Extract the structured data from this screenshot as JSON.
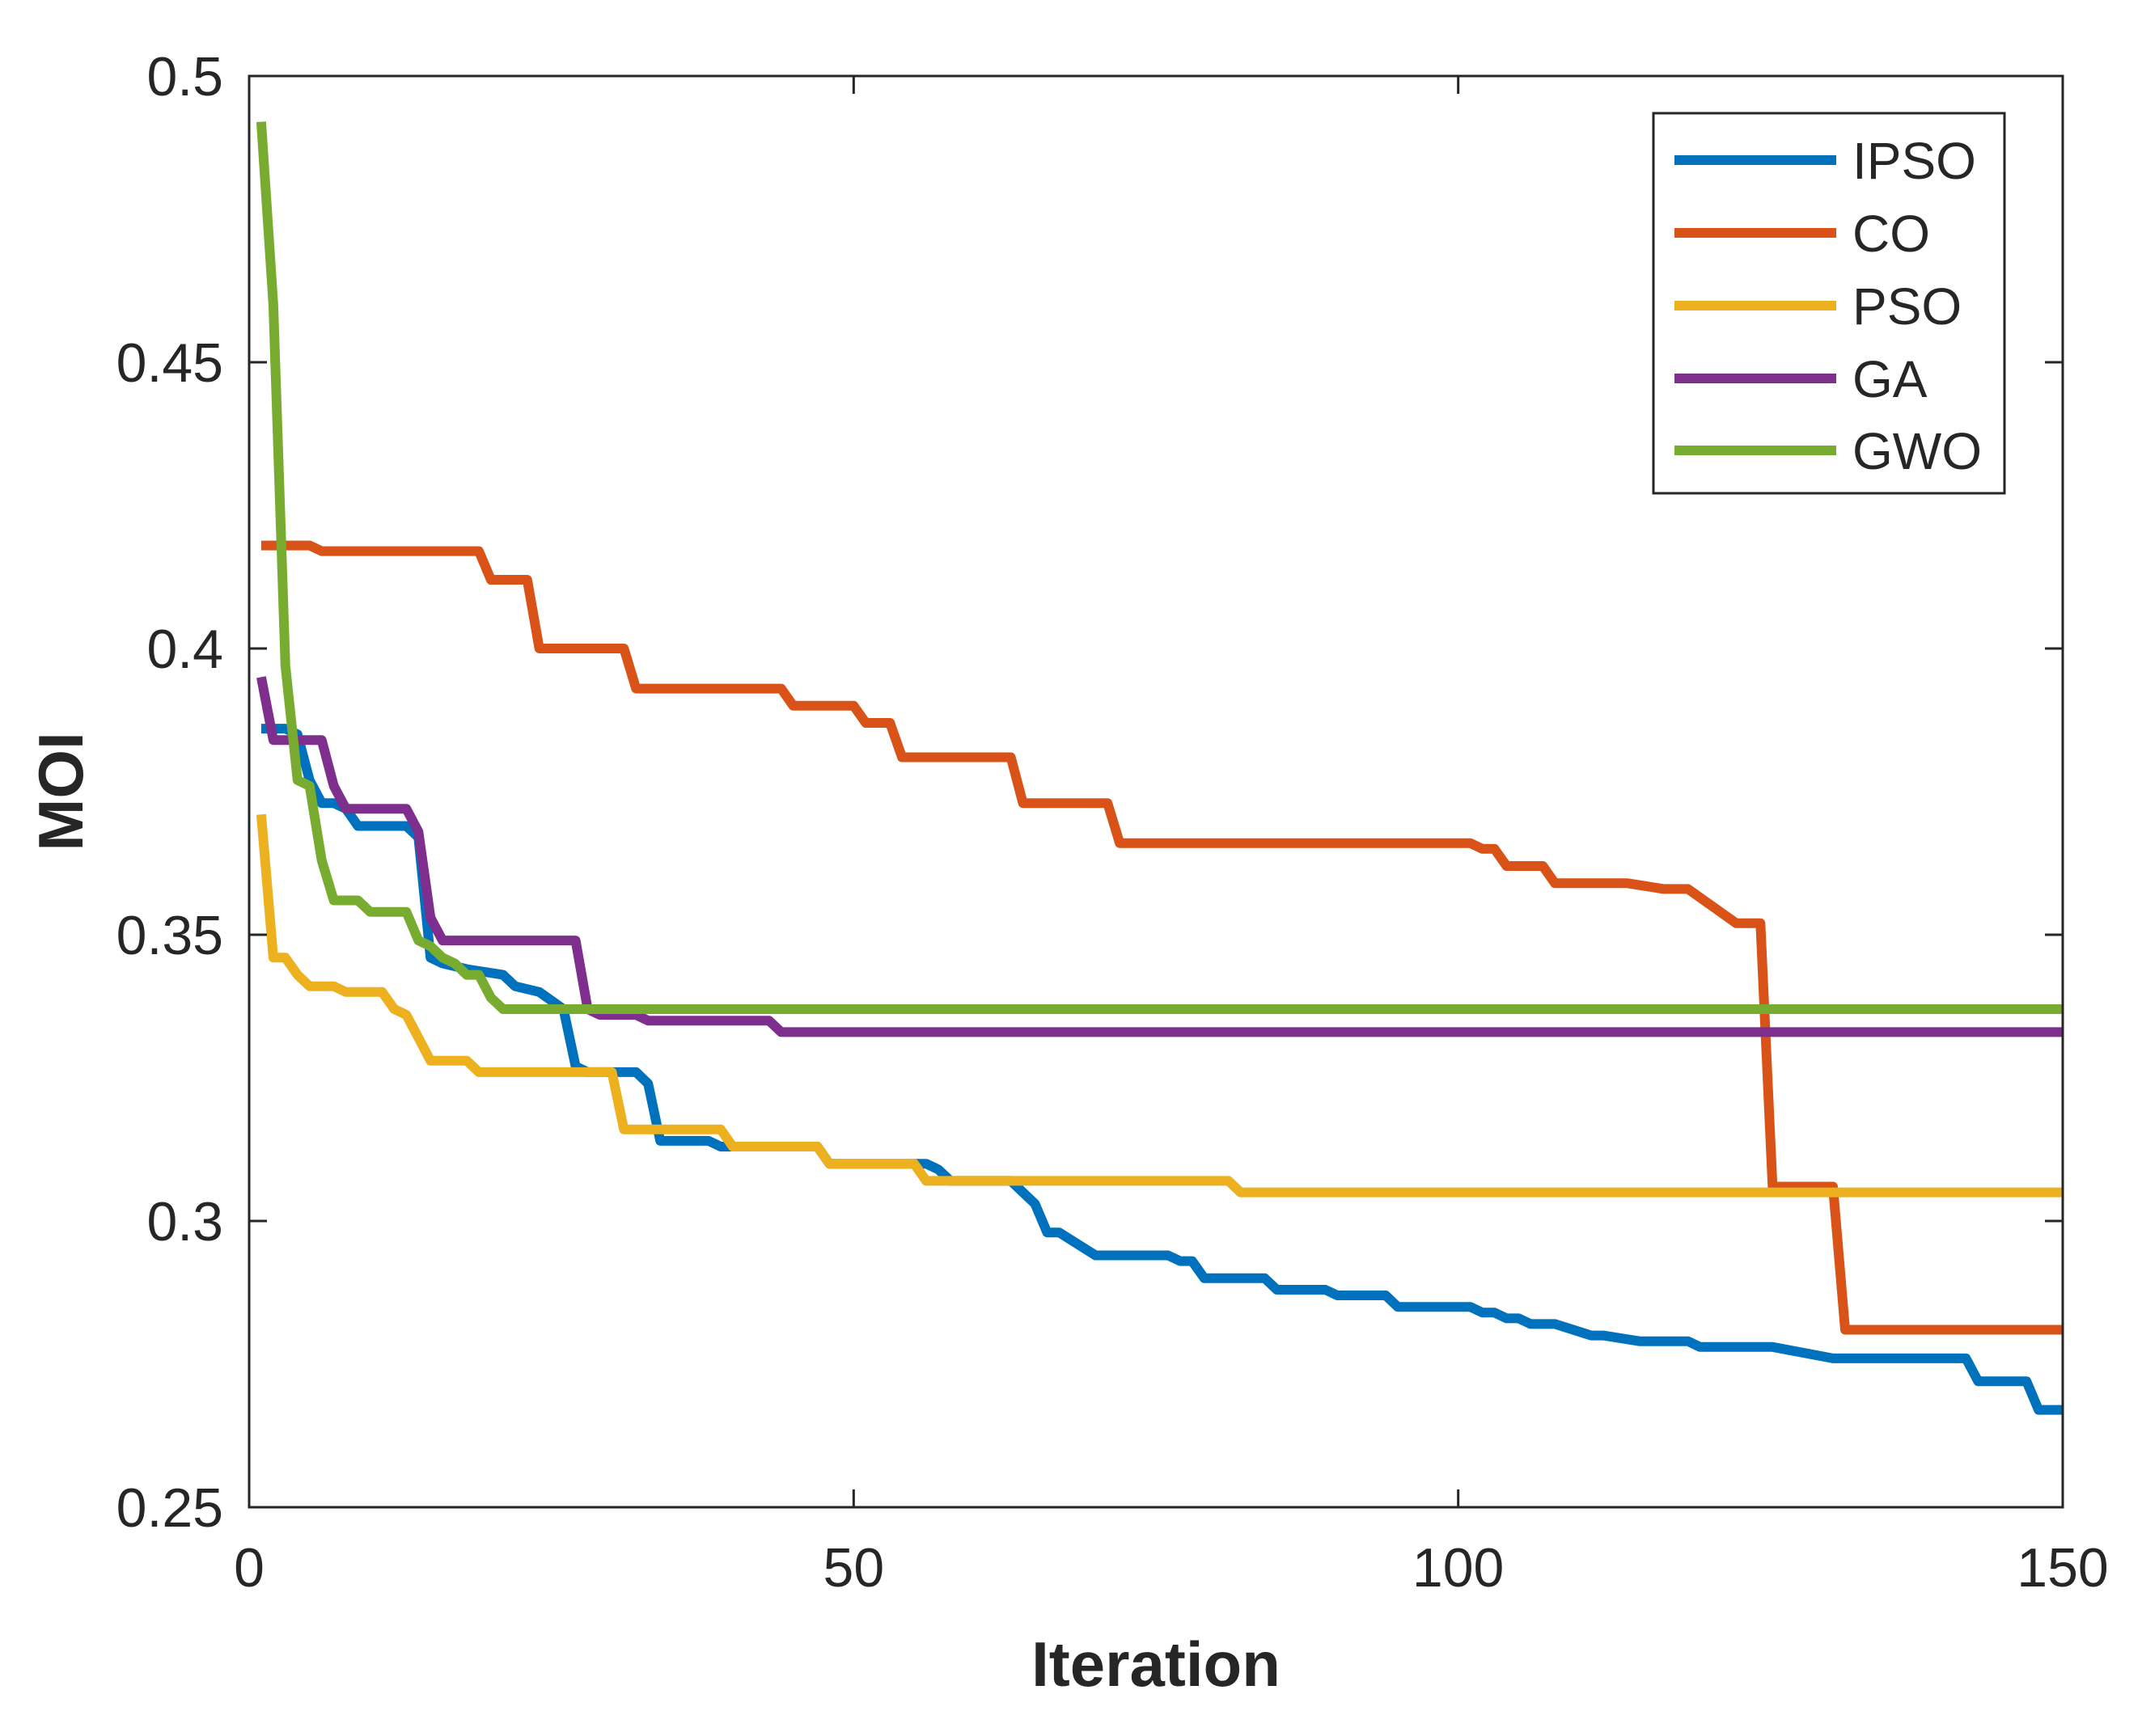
{
  "chart_data": {
    "type": "line",
    "title": "",
    "xlabel": "Iteration",
    "ylabel": "MOI",
    "xlim": [
      0,
      150
    ],
    "ylim": [
      0.25,
      0.5
    ],
    "xticks": [
      0,
      50,
      100,
      150
    ],
    "xtick_labels": [
      "0",
      "50",
      "100",
      "150"
    ],
    "yticks": [
      0.25,
      0.3,
      0.35,
      0.4,
      0.45,
      0.5
    ],
    "ytick_labels": [
      "0.25",
      "0.3",
      "0.35",
      "0.4",
      "0.45",
      "0.5"
    ],
    "grid": false,
    "legend_position": "top-right",
    "series": [
      {
        "name": "IPSO",
        "color": "#0072BD",
        "x": [
          1,
          3,
          4,
          5,
          6,
          7,
          8,
          9,
          13,
          14,
          15,
          16,
          18,
          21,
          22,
          24,
          26,
          27,
          28,
          32,
          33,
          34,
          38,
          39,
          40,
          47,
          48,
          56,
          57,
          58,
          63,
          64,
          65,
          66,
          67,
          70,
          71,
          76,
          77,
          78,
          79,
          80,
          84,
          85,
          89,
          90,
          94,
          95,
          101,
          102,
          103,
          104,
          105,
          106,
          107,
          108,
          111,
          112,
          115,
          116,
          119,
          120,
          125,
          126,
          131,
          132,
          141,
          142,
          143,
          144,
          147,
          148,
          150
        ],
        "y": [
          0.386,
          0.386,
          0.385,
          0.377,
          0.373,
          0.373,
          0.372,
          0.369,
          0.369,
          0.367,
          0.346,
          0.345,
          0.344,
          0.343,
          0.341,
          0.34,
          0.337,
          0.327,
          0.326,
          0.326,
          0.324,
          0.314,
          0.314,
          0.313,
          0.313,
          0.313,
          0.31,
          0.31,
          0.309,
          0.307,
          0.307,
          0.305,
          0.303,
          0.298,
          0.298,
          0.294,
          0.294,
          0.294,
          0.293,
          0.293,
          0.29,
          0.29,
          0.29,
          0.288,
          0.288,
          0.287,
          0.287,
          0.285,
          0.285,
          0.284,
          0.284,
          0.283,
          0.283,
          0.282,
          0.282,
          0.282,
          0.28,
          0.28,
          0.279,
          0.279,
          0.279,
          0.278,
          0.278,
          0.278,
          0.276,
          0.276,
          0.276,
          0.276,
          0.272,
          0.272,
          0.272,
          0.267,
          0.267
        ]
      },
      {
        "name": "CO",
        "color": "#D95319",
        "x": [
          1,
          5,
          6,
          19,
          20,
          22,
          23,
          24,
          31,
          32,
          44,
          45,
          50,
          51,
          53,
          54,
          63,
          64,
          71,
          72,
          101,
          102,
          103,
          104,
          106,
          107,
          108,
          109,
          114,
          117,
          118,
          119,
          123,
          124,
          125,
          126,
          131,
          132,
          150
        ],
        "y": [
          0.418,
          0.418,
          0.417,
          0.417,
          0.412,
          0.412,
          0.412,
          0.4,
          0.4,
          0.393,
          0.393,
          0.39,
          0.39,
          0.387,
          0.387,
          0.381,
          0.381,
          0.373,
          0.373,
          0.366,
          0.366,
          0.365,
          0.365,
          0.362,
          0.362,
          0.362,
          0.359,
          0.359,
          0.359,
          0.358,
          0.358,
          0.358,
          0.352,
          0.352,
          0.352,
          0.306,
          0.306,
          0.281,
          0.281
        ]
      },
      {
        "name": "PSO",
        "color": "#EDB120",
        "x": [
          1,
          2,
          3,
          4,
          5,
          7,
          8,
          11,
          12,
          13,
          14,
          15,
          18,
          19,
          30,
          31,
          39,
          40,
          47,
          48,
          55,
          56,
          63,
          81,
          82,
          150
        ],
        "y": [
          0.371,
          0.346,
          0.346,
          0.343,
          0.341,
          0.341,
          0.34,
          0.34,
          0.337,
          0.336,
          0.332,
          0.328,
          0.328,
          0.326,
          0.326,
          0.316,
          0.316,
          0.313,
          0.313,
          0.31,
          0.31,
          0.307,
          0.307,
          0.307,
          0.305,
          0.305
        ]
      },
      {
        "name": "GA",
        "color": "#7E2F8E",
        "x": [
          1,
          2,
          6,
          7,
          8,
          13,
          14,
          15,
          16,
          27,
          28,
          29,
          32,
          33,
          43,
          44,
          150
        ],
        "y": [
          0.395,
          0.384,
          0.384,
          0.376,
          0.372,
          0.372,
          0.368,
          0.353,
          0.349,
          0.349,
          0.337,
          0.336,
          0.336,
          0.335,
          0.335,
          0.333,
          0.333
        ]
      },
      {
        "name": "GWO",
        "color": "#77AC30",
        "x": [
          1,
          2,
          3,
          4,
          5,
          6,
          7,
          8,
          9,
          10,
          13,
          14,
          15,
          16,
          17,
          18,
          19,
          20,
          21,
          150
        ],
        "y": [
          0.492,
          0.46,
          0.397,
          0.377,
          0.376,
          0.363,
          0.356,
          0.356,
          0.356,
          0.354,
          0.354,
          0.349,
          0.348,
          0.346,
          0.345,
          0.343,
          0.343,
          0.339,
          0.337,
          0.337
        ]
      }
    ]
  }
}
